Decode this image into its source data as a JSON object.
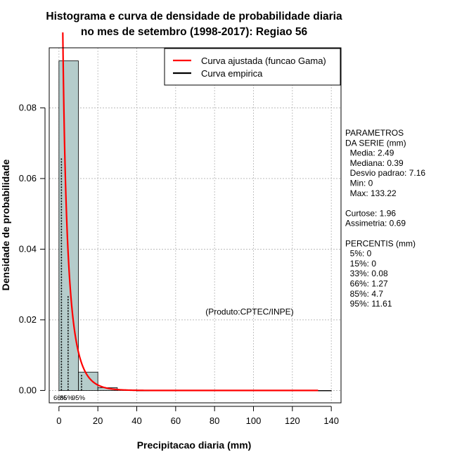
{
  "chart_data": {
    "type": "bar",
    "title_lines": [
      "Histograma e curva de densidade de probabilidade diaria",
      "no mes de setembro (1998-2017): Regiao 56"
    ],
    "xlabel": "Precipitacao diaria (mm)",
    "ylabel": "Densidade de probabilidade",
    "xlim": [
      -5,
      145
    ],
    "ylim": [
      -0.0035,
      0.097
    ],
    "xticks": [
      0,
      20,
      40,
      60,
      80,
      100,
      120,
      140
    ],
    "yticks": [
      0.0,
      0.02,
      0.04,
      0.06,
      0.08
    ],
    "ytick_labels": [
      "0.00",
      "0.02",
      "0.04",
      "0.06",
      "0.08"
    ],
    "grid": true,
    "bin_width": 10,
    "bins": [
      {
        "start": 0,
        "end": 10,
        "density": 0.0933
      },
      {
        "start": 10,
        "end": 20,
        "density": 0.0052
      },
      {
        "start": 20,
        "end": 30,
        "density": 0.0008
      },
      {
        "start": 30,
        "end": 40,
        "density": 0.0002
      },
      {
        "start": 40,
        "end": 140,
        "density": 0.0
      }
    ],
    "gamma_curve": {
      "shape": 0.38,
      "scale": 6.55,
      "x_start": 0.15,
      "x_end": 133.22,
      "color": "#ff0000",
      "label": "Curva ajustada (funcao Gama)"
    },
    "empirical_curve": {
      "color": "#000000",
      "label": "Curva empirica"
    },
    "legend_position": "top-right",
    "bar_fill": "#b5cccb",
    "percentile_markers": [
      {
        "label": "66%",
        "value": 1.27,
        "height": 0.066
      },
      {
        "label": "85%",
        "value": 4.7,
        "height": 0.027
      },
      {
        "label": "95%",
        "value": 11.61,
        "height": 0.0045
      }
    ],
    "percentile_bottom_labels": [
      "66%",
      "85%",
      "95%"
    ],
    "annotation": "(Produto:CPTEC/INPE)",
    "annotation_x": 98,
    "annotation_y": 0.0215
  },
  "side_panel": {
    "lines": [
      "PARAMETROS",
      "DA SERIE (mm)",
      "  Media: 2.49",
      "  Mediana: 0.39",
      "  Desvio padrao: 7.16",
      "  Min: 0",
      "  Max: 133.22",
      "",
      "Curtose: 1.96",
      "Assimetria: 0.69",
      "",
      "PERCENTIS (mm)",
      "  5%: 0",
      "  15%: 0",
      "  33%: 0.08",
      "  66%: 1.27",
      "  85%: 4.7",
      "  95%: 11.61"
    ]
  }
}
